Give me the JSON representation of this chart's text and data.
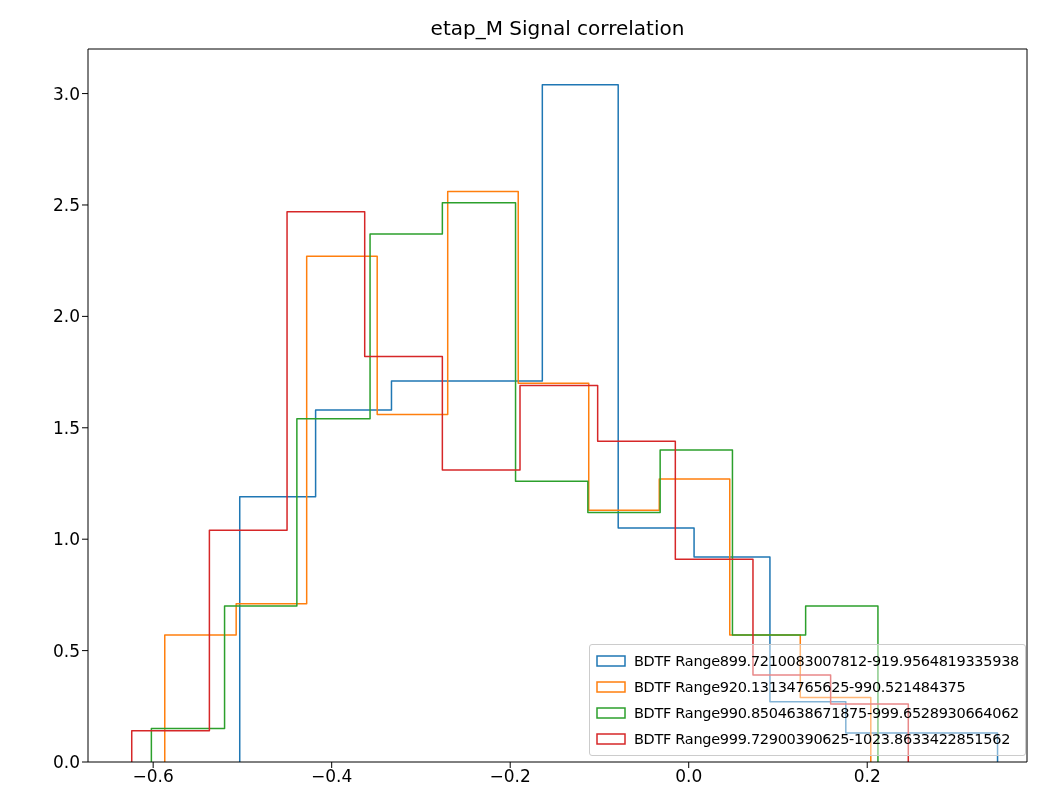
{
  "chart_data": {
    "type": "step",
    "title": "etap_M Signal correlation",
    "legend": "bottom right",
    "grid": false,
    "xlim": [
      -0.673,
      0.379
    ],
    "ylim": [
      0,
      3.2
    ],
    "xticks": [
      {
        "value": -0.6,
        "label": "−0.6"
      },
      {
        "value": -0.4,
        "label": "−0.4"
      },
      {
        "value": -0.2,
        "label": "−0.2"
      },
      {
        "value": 0,
        "label": "0.0"
      },
      {
        "value": 0.2,
        "label": "0.2"
      }
    ],
    "yticks": [
      {
        "value": 0,
        "label": "0.0"
      },
      {
        "value": 0.5,
        "label": "0.5"
      },
      {
        "value": 1,
        "label": "1.0"
      },
      {
        "value": 1.5,
        "label": "1.5"
      },
      {
        "value": 2,
        "label": "2.0"
      },
      {
        "value": 2.5,
        "label": "2.5"
      },
      {
        "value": 3,
        "label": "3.0"
      }
    ],
    "series": [
      {
        "name": "BDTF Range899.7210083007812-919.9564819335938",
        "color": "#1f77b4",
        "x": [
          -0.503,
          -0.503,
          -0.418,
          -0.333,
          -0.249,
          -0.164,
          -0.079,
          0.006,
          0.091,
          0.176,
          0.261,
          0.346
        ],
        "values": [
          0,
          1.19,
          1.58,
          1.71,
          1.71,
          3.04,
          1.05,
          0.92,
          0.27,
          0.13,
          0.13,
          0
        ]
      },
      {
        "name": "BDTF Range920.13134765625-990.521484375",
        "color": "#ff7f0e",
        "x": [
          -0.587,
          -0.587,
          -0.507,
          -0.428,
          -0.349,
          -0.27,
          -0.191,
          -0.112,
          -0.033,
          0.046,
          0.125,
          0.204
        ],
        "values": [
          0,
          0.57,
          0.71,
          2.27,
          1.56,
          2.56,
          1.7,
          1.13,
          1.27,
          0.57,
          0.29,
          0
        ]
      },
      {
        "name": "BDTF Range990.8504638671875-999.6528930664062",
        "color": "#2ca02c",
        "x": [
          -0.602,
          -0.602,
          -0.52,
          -0.439,
          -0.357,
          -0.276,
          -0.194,
          -0.113,
          -0.032,
          0.049,
          0.131,
          0.212
        ],
        "values": [
          0,
          0.15,
          0.7,
          1.54,
          2.37,
          2.51,
          1.26,
          1.12,
          1.4,
          0.57,
          0.7,
          0
        ]
      },
      {
        "name": "BDTF Range999.72900390625-1023.8633422851562",
        "color": "#d62728",
        "x": [
          -0.624,
          -0.624,
          -0.537,
          -0.45,
          -0.363,
          -0.276,
          -0.189,
          -0.102,
          -0.015,
          0.072,
          0.159,
          0.246
        ],
        "values": [
          0,
          0.14,
          1.04,
          2.47,
          1.82,
          1.31,
          1.69,
          1.44,
          0.91,
          0.39,
          0.26,
          0
        ]
      }
    ]
  }
}
